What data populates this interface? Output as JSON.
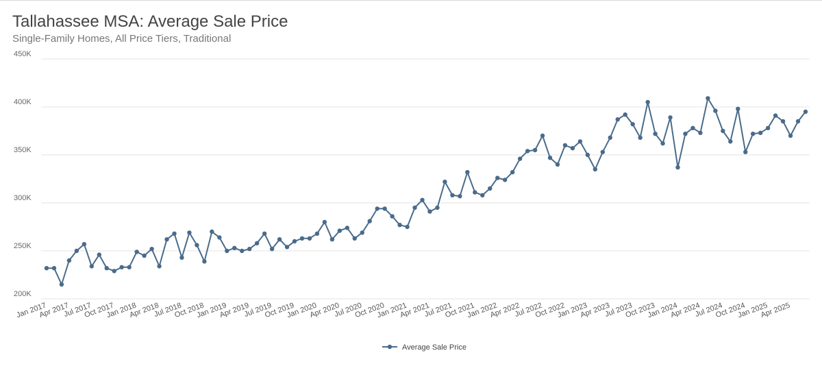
{
  "chart_data": {
    "type": "line",
    "title": "Tallahassee MSA: Average Sale Price",
    "subtitle": "Single-Family Homes, All Price Tiers, Traditional",
    "ylim": [
      200000,
      450000
    ],
    "yticks": [
      200000,
      250000,
      300000,
      350000,
      400000,
      450000
    ],
    "ytick_labels": [
      "200K",
      "250K",
      "300K",
      "350K",
      "400K",
      "450K"
    ],
    "x_start": "Jan 2017",
    "xtick_labels": [
      "Jan 2017",
      "Apr 2017",
      "Jul 2017",
      "Oct 2017",
      "Jan 2018",
      "Apr 2018",
      "Jul 2018",
      "Oct 2018",
      "Jan 2019",
      "Apr 2019",
      "Jul 2019",
      "Oct 2019",
      "Jan 2020",
      "Apr 2020",
      "Jul 2020",
      "Oct 2020",
      "Jan 2021",
      "Apr 2021",
      "Jul 2021",
      "Oct 2021",
      "Jan 2022",
      "Apr 2022",
      "Jul 2022",
      "Oct 2022",
      "Jan 2023",
      "Apr 2023",
      "Jul 2023",
      "Oct 2023",
      "Jan 2024",
      "Apr 2024",
      "Jul 2024",
      "Oct 2024",
      "Jan 2025",
      "Apr 2025"
    ],
    "grid": true,
    "legend_position": "bottom",
    "line_color": "#4a6b8a",
    "series": [
      {
        "name": "Average Sale Price",
        "values": [
          232000,
          232000,
          215000,
          240000,
          250000,
          257000,
          234000,
          246000,
          232000,
          229000,
          233000,
          233000,
          249000,
          245000,
          252000,
          234000,
          262000,
          268000,
          243000,
          269000,
          256000,
          239000,
          270000,
          264000,
          250000,
          253000,
          250000,
          252000,
          258000,
          268000,
          252000,
          262000,
          254000,
          260000,
          263000,
          263000,
          268000,
          280000,
          262000,
          271000,
          274000,
          263000,
          269000,
          281000,
          294000,
          294000,
          286000,
          277000,
          275000,
          295000,
          303000,
          291000,
          295000,
          322000,
          308000,
          307000,
          332000,
          311000,
          308000,
          315000,
          326000,
          324000,
          332000,
          346000,
          354000,
          355000,
          370000,
          347000,
          340000,
          360000,
          357000,
          364000,
          350000,
          335000,
          353000,
          368000,
          387000,
          392000,
          382000,
          368000,
          405000,
          372000,
          362000,
          389000,
          337000,
          372000,
          378000,
          373000,
          409000,
          396000,
          375000,
          364000,
          398000,
          353000,
          372000,
          373000,
          378000,
          391000,
          385000,
          370000,
          385000,
          395000
        ]
      }
    ]
  }
}
